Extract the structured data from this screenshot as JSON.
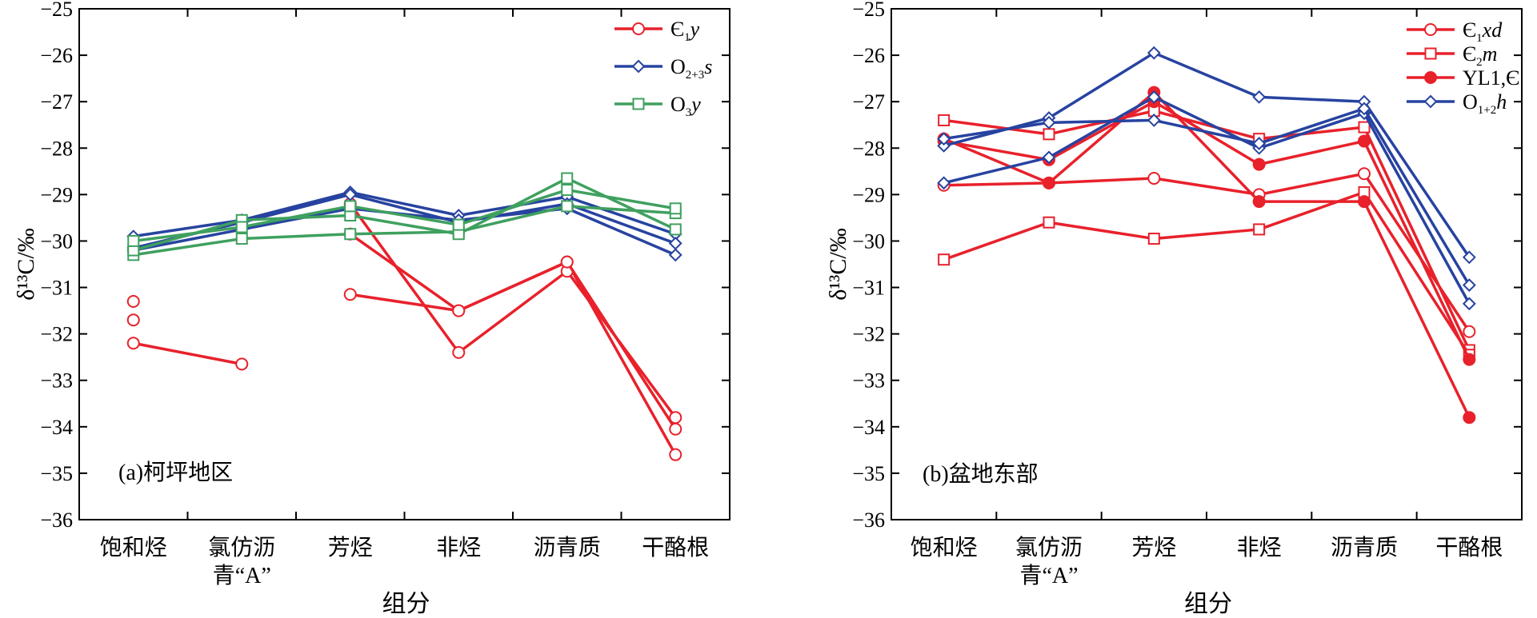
{
  "chart_data": [
    {
      "type": "line",
      "annotation": "(a)柯坪地区",
      "xlabel": "组分",
      "ylabel": "δ¹³C/‰",
      "ylim": [
        -36,
        -25
      ],
      "yticks": [
        -25,
        -26,
        -27,
        -28,
        -29,
        -30,
        -31,
        -32,
        -33,
        -34,
        -35,
        -36
      ],
      "categories": [
        {
          "line1": "饱和烃",
          "line2": ""
        },
        {
          "line1": "氯仿沥",
          "line2": "青“A”"
        },
        {
          "line1": "芳烃",
          "line2": ""
        },
        {
          "line1": "非烃",
          "line2": ""
        },
        {
          "line1": "沥青质",
          "line2": ""
        },
        {
          "line1": "干酪根",
          "line2": ""
        }
      ],
      "grid": false,
      "legend_position": "top-right",
      "legend": [
        {
          "base": "Є",
          "sub": "1",
          "rest": "y",
          "color": "#e8212b",
          "marker": "circle-open"
        },
        {
          "base": "O",
          "sub": "2+3",
          "rest": "s",
          "color": "#2743a0",
          "marker": "diamond-open"
        },
        {
          "base": "O",
          "sub": "3",
          "rest": "y",
          "color": "#3fa05f",
          "marker": "square-open"
        }
      ],
      "series": [
        {
          "group": 0,
          "values": [
            -32.2,
            -32.65,
            null,
            null,
            null,
            null
          ]
        },
        {
          "group": 0,
          "values": [
            null,
            null,
            -31.15,
            -31.5,
            -30.45,
            -34.6
          ]
        },
        {
          "group": 0,
          "values": [
            null,
            null,
            -29.2,
            -32.4,
            -30.65,
            -33.8
          ]
        },
        {
          "group": 0,
          "values": [
            null,
            null,
            -29.85,
            -31.5,
            -30.45,
            -34.05
          ]
        },
        {
          "group": 0,
          "values": [
            -31.3,
            null,
            null,
            null,
            null,
            null
          ]
        },
        {
          "group": 0,
          "values": [
            -31.7,
            null,
            null,
            null,
            null,
            null
          ]
        },
        {
          "group": 1,
          "values": [
            -29.9,
            -29.55,
            -28.95,
            -29.45,
            -29.05,
            -29.85
          ]
        },
        {
          "group": 1,
          "values": [
            -30.15,
            -29.6,
            -29.0,
            -29.6,
            -29.2,
            -30.05
          ]
        },
        {
          "group": 1,
          "values": [
            -30.2,
            -29.75,
            -29.3,
            -29.55,
            -29.3,
            -30.3
          ]
        },
        {
          "group": 2,
          "values": [
            -30.3,
            -29.95,
            -29.85,
            -29.8,
            -29.25,
            -29.4
          ]
        },
        {
          "group": 2,
          "values": [
            -30.2,
            -29.55,
            -29.45,
            -29.85,
            -28.65,
            -29.75
          ]
        },
        {
          "group": 2,
          "values": [
            -30.0,
            -29.7,
            -29.25,
            -29.65,
            -28.9,
            -29.3
          ]
        }
      ]
    },
    {
      "type": "line",
      "annotation": "(b)盆地东部",
      "xlabel": "组分",
      "ylabel": "δ¹³C/‰",
      "ylim": [
        -36,
        -25
      ],
      "yticks": [
        -25,
        -26,
        -27,
        -28,
        -29,
        -30,
        -31,
        -32,
        -33,
        -34,
        -35,
        -36
      ],
      "categories": [
        {
          "line1": "饱和烃",
          "line2": ""
        },
        {
          "line1": "氯仿沥",
          "line2": "青“A”"
        },
        {
          "line1": "芳烃",
          "line2": ""
        },
        {
          "line1": "非烃",
          "line2": ""
        },
        {
          "line1": "沥青质",
          "line2": ""
        },
        {
          "line1": "干酪根",
          "line2": ""
        }
      ],
      "grid": false,
      "legend_position": "top-right",
      "legend": [
        {
          "base": "Є",
          "sub": "1",
          "rest": "xd",
          "color": "#e8212b",
          "marker": "circle-open"
        },
        {
          "base": "Є",
          "sub": "2",
          "rest": "m",
          "color": "#e8212b",
          "marker": "square-open"
        },
        {
          "base": "YL1,Є",
          "sub": "",
          "rest": "",
          "color": "#e8212b",
          "marker": "circle-filled"
        },
        {
          "base": "O",
          "sub": "1+2",
          "rest": "h",
          "color": "#2743a0",
          "marker": "diamond-open"
        }
      ],
      "series": [
        {
          "group": 0,
          "values": [
            -28.8,
            -28.75,
            -28.65,
            -29.0,
            -28.55,
            -31.95
          ]
        },
        {
          "group": 1,
          "values": [
            -27.4,
            -27.7,
            -27.2,
            -27.8,
            -27.55,
            -32.35
          ]
        },
        {
          "group": 1,
          "values": [
            -30.4,
            -29.6,
            -29.95,
            -29.75,
            -28.95,
            -32.45
          ]
        },
        {
          "group": 2,
          "values": [
            -27.8,
            -28.75,
            -26.8,
            -29.15,
            -29.15,
            -33.8
          ]
        },
        {
          "group": 2,
          "values": [
            -27.85,
            -28.25,
            -27.0,
            -28.35,
            -27.85,
            -32.55
          ]
        },
        {
          "group": 3,
          "values": [
            -27.95,
            -27.35,
            -25.95,
            -26.9,
            -27.0,
            -30.35
          ]
        },
        {
          "group": 3,
          "values": [
            -28.75,
            -28.2,
            -26.9,
            -28.0,
            -27.25,
            -31.35
          ]
        },
        {
          "group": 3,
          "values": [
            -27.8,
            -27.45,
            -27.4,
            -27.9,
            -27.15,
            -30.95
          ]
        }
      ]
    }
  ]
}
